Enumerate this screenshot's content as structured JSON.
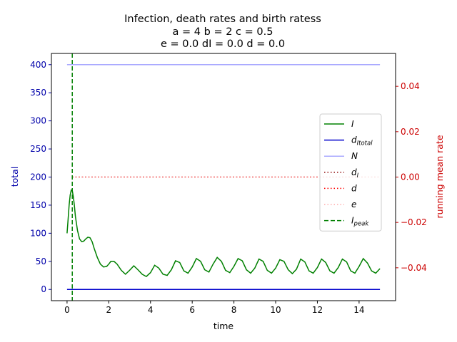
{
  "chart_data": {
    "type": "line",
    "title_lines": [
      "Infection, death rates and birth ratess",
      "a = 4   b = 2   c = 0.5",
      "e = 0.0   dI = 0.0   d = 0.0"
    ],
    "xlabel": "time",
    "ylabel_left": "total",
    "ylabel_right": "running mean rate",
    "xlim": [
      -0.75,
      15.75
    ],
    "ylim_left": [
      -20,
      420
    ],
    "ylim_right": [
      -0.0545,
      0.0545
    ],
    "x_ticks": [
      "0",
      "2",
      "4",
      "6",
      "8",
      "10",
      "12",
      "14"
    ],
    "x_tick_values": [
      0,
      2,
      4,
      6,
      8,
      10,
      12,
      14
    ],
    "y_left_ticks": [
      "0",
      "50",
      "100",
      "150",
      "200",
      "250",
      "300",
      "350",
      "400"
    ],
    "y_left_tick_values": [
      0,
      50,
      100,
      150,
      200,
      250,
      300,
      350,
      400
    ],
    "y_right_ticks": [
      "−0.04",
      "−0.02",
      "0.00",
      "0.02",
      "0.04"
    ],
    "y_right_tick_values": [
      -0.04,
      -0.02,
      0.0,
      0.02,
      0.04
    ],
    "grid": false,
    "legend_position": "center-right",
    "colors": {
      "left_axis": "#0000aa",
      "right_axis": "#cc0000",
      "I": "#008000",
      "dI_total": "#0000cc",
      "N": "#aaaaff",
      "dI": "#8b0000",
      "d": "#ff0000",
      "e": "#ffaaaa",
      "I_peak": "#008000"
    },
    "series": [
      {
        "key": "I",
        "name": "I",
        "axis": "left",
        "style": "solid",
        "x": [
          0,
          0.05,
          0.1,
          0.15,
          0.2,
          0.25,
          0.3,
          0.35,
          0.4,
          0.5,
          0.6,
          0.7,
          0.8,
          0.9,
          1.0,
          1.1,
          1.2,
          1.3,
          1.45,
          1.6,
          1.75,
          1.9,
          2.0,
          2.1,
          2.25,
          2.4,
          2.6,
          2.8,
          3.0,
          3.2,
          3.4,
          3.6,
          3.8,
          4.0,
          4.2,
          4.4,
          4.6,
          4.8,
          5.0,
          5.2,
          5.4,
          5.6,
          5.8,
          6.0,
          6.2,
          6.4,
          6.6,
          6.8,
          7.0,
          7.2,
          7.4,
          7.6,
          7.8,
          8.0,
          8.2,
          8.4,
          8.6,
          8.8,
          9.0,
          9.2,
          9.4,
          9.6,
          9.8,
          10.0,
          10.2,
          10.4,
          10.6,
          10.8,
          11.0,
          11.2,
          11.4,
          11.6,
          11.8,
          12.0,
          12.2,
          12.4,
          12.6,
          12.8,
          13.0,
          13.2,
          13.4,
          13.6,
          13.8,
          14.0,
          14.2,
          14.4,
          14.6,
          14.8,
          15.0
        ],
        "values": [
          100,
          125,
          150,
          168,
          177,
          176,
          165,
          150,
          130,
          105,
          90,
          85,
          86,
          90,
          93,
          92,
          85,
          73,
          57,
          45,
          40,
          41,
          45,
          50,
          50,
          45,
          34,
          27,
          34,
          42,
          35,
          27,
          23,
          30,
          43,
          38,
          27,
          25,
          35,
          51,
          48,
          33,
          29,
          40,
          55,
          50,
          35,
          31,
          45,
          57,
          50,
          34,
          30,
          41,
          55,
          51,
          35,
          29,
          38,
          54,
          50,
          34,
          29,
          38,
          53,
          50,
          35,
          28,
          36,
          54,
          49,
          33,
          29,
          39,
          54,
          48,
          33,
          29,
          39,
          54,
          49,
          33,
          29,
          41,
          55,
          47,
          33,
          29,
          37
        ]
      },
      {
        "key": "dI_total",
        "name": "d_{Itotal}",
        "axis": "left",
        "style": "solid",
        "x": [
          0,
          15
        ],
        "values": [
          0,
          0
        ]
      },
      {
        "key": "N",
        "name": "N",
        "axis": "left",
        "style": "solid",
        "x": [
          0,
          15
        ],
        "values": [
          400,
          400
        ]
      },
      {
        "key": "dI",
        "name": "d_I",
        "axis": "right",
        "style": "dotted",
        "x": [
          0.25,
          15
        ],
        "values": [
          0.0,
          0.0
        ]
      },
      {
        "key": "d",
        "name": "d",
        "axis": "right",
        "style": "dotted",
        "x": [
          0.25,
          15
        ],
        "values": [
          0.0,
          0.0
        ]
      },
      {
        "key": "e",
        "name": "e",
        "axis": "right",
        "style": "dotted",
        "x": [
          0.25,
          15
        ],
        "values": [
          0.0,
          0.0
        ]
      }
    ],
    "I_peak": {
      "key": "I_peak",
      "name": "I_peak",
      "x": 0.25
    },
    "legend": [
      {
        "key": "I",
        "label": "I",
        "sub": ""
      },
      {
        "key": "dI_total",
        "label": "d",
        "sub": "Itotal"
      },
      {
        "key": "N",
        "label": "N",
        "sub": ""
      },
      {
        "key": "dI",
        "label": "d",
        "sub": "I"
      },
      {
        "key": "d",
        "label": "d",
        "sub": ""
      },
      {
        "key": "e",
        "label": "e",
        "sub": ""
      },
      {
        "key": "I_peak",
        "label": "I",
        "sub": "peak"
      }
    ]
  }
}
